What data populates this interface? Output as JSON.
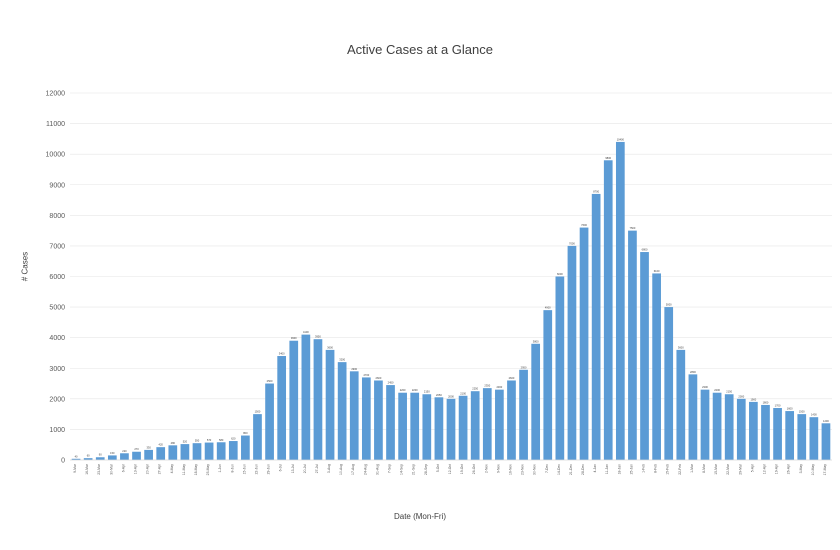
{
  "chart_data": {
    "type": "bar",
    "title": "Active Cases at a Glance",
    "xlabel": "Date (Mon-Fri)",
    "ylabel": "# Cases",
    "ylim": [
      0,
      12000
    ],
    "yticks": [
      0,
      1000,
      2000,
      3000,
      4000,
      5000,
      6000,
      7000,
      8000,
      9000,
      10000,
      11000,
      12000
    ],
    "grid": true,
    "legend": "none",
    "bar_color": "#5b9bd5",
    "categories": [
      "9-Mar",
      "16-Mar",
      "23-Mar",
      "30-Mar",
      "6-Apr",
      "13-Apr",
      "20-Apr",
      "27-Apr",
      "4-May",
      "11-May",
      "18-May",
      "25-May",
      "1-Jun",
      "8-Jun",
      "15-Jun",
      "22-Jun",
      "29-Jun",
      "6-Jul",
      "13-Jul",
      "20-Jul",
      "27-Jul",
      "3-Aug",
      "10-Aug",
      "17-Aug",
      "24-Aug",
      "31-Aug",
      "7-Sep",
      "14-Sep",
      "21-Sep",
      "28-Sep",
      "5-Oct",
      "12-Oct",
      "19-Oct",
      "26-Oct",
      "2-Nov",
      "9-Nov",
      "16-Nov",
      "23-Nov",
      "30-Nov",
      "7-Dec",
      "14-Dec",
      "21-Dec",
      "28-Dec",
      "4-Jan",
      "11-Jan",
      "18-Jan",
      "25-Jan",
      "1-Feb",
      "8-Feb",
      "15-Feb",
      "22-Feb",
      "1-Mar",
      "8-Mar",
      "15-Mar",
      "22-Mar",
      "29-Mar",
      "5-Apr",
      "12-Apr",
      "19-Apr",
      "26-Apr",
      "3-May",
      "10-May",
      "17-May"
    ],
    "values": [
      40,
      60,
      90,
      150,
      220,
      270,
      330,
      420,
      480,
      520,
      550,
      570,
      580,
      620,
      800,
      1500,
      2500,
      3400,
      3900,
      4100,
      3950,
      3600,
      3200,
      2900,
      2700,
      2600,
      2450,
      2200,
      2200,
      2150,
      2050,
      2000,
      2100,
      2250,
      2350,
      2300,
      2600,
      2950,
      3800,
      4900,
      6000,
      7000,
      7600,
      8700,
      9800,
      10400,
      7500,
      6800,
      6100,
      5000,
      3600,
      2800,
      2300,
      2200,
      2150,
      2000,
      1900,
      1800,
      1700,
      1600,
      1500,
      1400,
      1200
    ],
    "data_labels": [
      "40",
      "60",
      "90",
      "150",
      "220",
      "270",
      "330",
      "420",
      "480",
      "520",
      "550",
      "570",
      "580",
      "620",
      "800",
      "1500",
      "2500",
      "3400",
      "3900",
      "4100",
      "3950",
      "3600",
      "3200",
      "2900",
      "2700",
      "2600",
      "2450",
      "2200",
      "2200",
      "2150",
      "2050",
      "2000",
      "2100",
      "2250",
      "2350",
      "2300",
      "2600",
      "2950",
      "3800",
      "4900",
      "6000",
      "7000",
      "7600",
      "8700",
      "9800",
      "10400",
      "7500",
      "6800",
      "6100",
      "5000",
      "3600",
      "2800",
      "2300",
      "2200",
      "2150",
      "2000",
      "1900",
      "1800",
      "1700",
      "1600",
      "1500",
      "1400",
      "1200"
    ]
  }
}
